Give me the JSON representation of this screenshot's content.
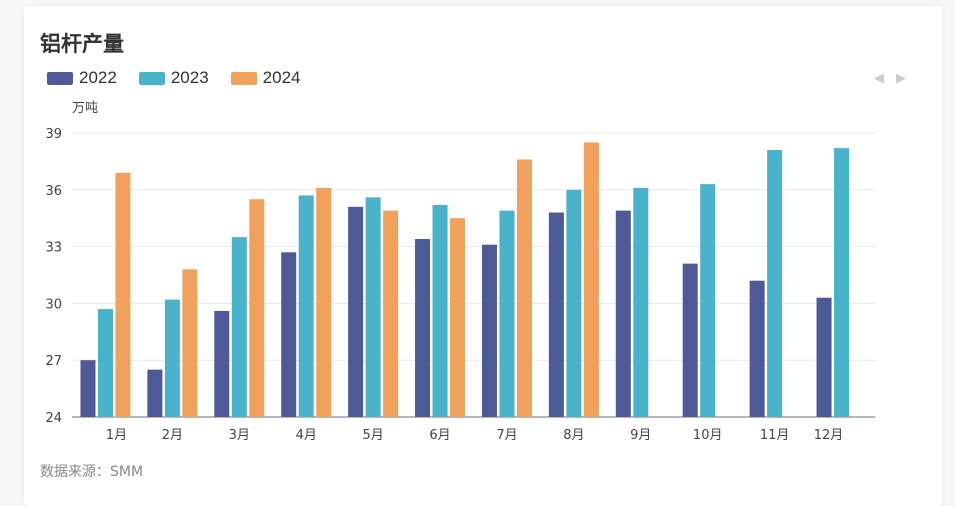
{
  "title": "铝杆产量",
  "source": "数据来源：SMM",
  "pager": {
    "prev": "◀",
    "next": "▶"
  },
  "chart_data": {
    "type": "bar",
    "title": "铝杆产量",
    "ylabel": "万吨",
    "xlabel": "",
    "ylim": [
      24,
      39
    ],
    "yticks": [
      24,
      27,
      30,
      33,
      36,
      39
    ],
    "grid": true,
    "legend_position": "top-left",
    "categories": [
      "1月",
      "2月",
      "3月",
      "4月",
      "5月",
      "6月",
      "7月",
      "8月",
      "9月",
      "10月",
      "11月",
      "12月"
    ],
    "series": [
      {
        "name": "2022",
        "color": "#4e5a97",
        "values": [
          27.0,
          26.5,
          29.6,
          32.7,
          35.1,
          33.4,
          33.1,
          34.8,
          34.9,
          32.1,
          31.2,
          30.3
        ]
      },
      {
        "name": "2023",
        "color": "#48b3cb",
        "values": [
          29.7,
          30.2,
          33.5,
          35.7,
          35.6,
          35.2,
          34.9,
          36.0,
          36.1,
          36.3,
          38.1,
          38.2
        ]
      },
      {
        "name": "2024",
        "color": "#f0a15c",
        "values": [
          36.9,
          31.8,
          35.5,
          36.1,
          34.9,
          34.5,
          37.6,
          38.5,
          null,
          null,
          null,
          null
        ]
      }
    ]
  }
}
